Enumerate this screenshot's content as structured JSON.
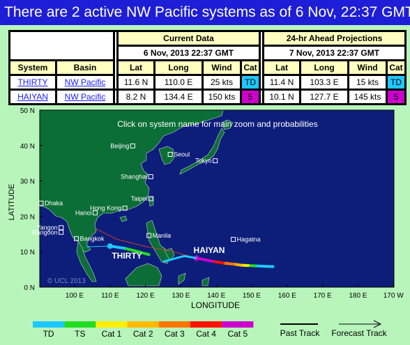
{
  "header": {
    "title": "There are 2 active NW Pacific systems as of 6 Nov, 22:37 GMT"
  },
  "table": {
    "current_title": "Current Data",
    "current_time": "6 Nov, 2013 22:37 GMT",
    "ahead_title": "24-hr Ahead Projections",
    "ahead_time": "7 Nov, 2013 22:37 GMT",
    "col_system": "System",
    "col_basin": "Basin",
    "col_lat": "Lat",
    "col_long": "Long",
    "col_wind": "Wind",
    "col_cat": "Cat",
    "rows": [
      {
        "system": "THIRTY",
        "basin": "NW Pacific",
        "lat": "11.6 N",
        "long": "110.0 E",
        "wind": "25 kts",
        "cat": "TD",
        "p_lat": "11.4 N",
        "p_long": "103.3 E",
        "p_wind": "15 kts",
        "p_cat": "TD"
      },
      {
        "system": "HAIYAN",
        "basin": "NW Pacific",
        "lat": "8.2 N",
        "long": "134.4 E",
        "wind": "150 kts",
        "cat": "5",
        "p_lat": "10.1 N",
        "p_long": "127.7 E",
        "p_wind": "145 kts",
        "p_cat": "5"
      }
    ]
  },
  "map": {
    "instruction": "Click on system name for main zoom and probabilities",
    "xlabel": "LONGITUDE",
    "ylabel": "LATITUDE",
    "x_ticks": [
      "100 E",
      "110 E",
      "120 E",
      "130 E",
      "140 E",
      "150 E",
      "160 E",
      "170 E",
      "180 E",
      "170 W"
    ],
    "y_ticks": [
      "0 N",
      "10 N",
      "20 N",
      "30 N",
      "40 N",
      "50 N"
    ],
    "copyright": "© UCL 2013",
    "storm_labels": [
      "THIRTY",
      "HAIYAN"
    ],
    "cities": [
      "Beijing",
      "Seoul",
      "Tokyo",
      "Shanghai",
      "Taipei",
      "Hong Kong",
      "Hanoi",
      "Dhaka",
      "Yangon",
      "Rangoon",
      "Bangkok",
      "Manila",
      "Hagatna"
    ]
  },
  "legend": {
    "categories": [
      {
        "label": "TD",
        "color": "#1ec8ff"
      },
      {
        "label": "TS",
        "color": "#22dd22"
      },
      {
        "label": "Cat 1",
        "color": "#ffee00"
      },
      {
        "label": "Cat 2",
        "color": "#ffbb00"
      },
      {
        "label": "Cat 3",
        "color": "#ff7700"
      },
      {
        "label": "Cat 4",
        "color": "#ff1100"
      },
      {
        "label": "Cat 5",
        "color": "#cc00cc"
      }
    ],
    "past": "Past Track",
    "forecast": "Forecast Track"
  }
}
